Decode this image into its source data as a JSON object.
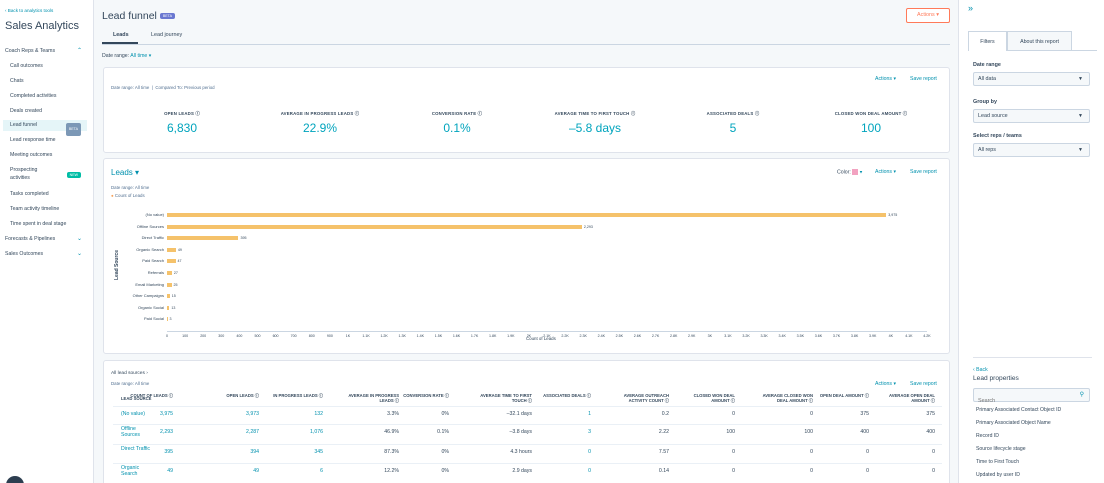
{
  "sidebar": {
    "back": "‹ Back to analytics tools",
    "title": "Sales Analytics",
    "sections": [
      "Coach Reps & Teams",
      "Forecasts & Pipelines",
      "Sales Outcomes"
    ],
    "items": [
      "Call outcomes",
      "Chats",
      "Completed activities",
      "Deals created",
      "Lead funnel",
      "Lead response time",
      "Meeting outcomes",
      "Prospecting activities",
      "Tasks completed",
      "Team activity timeline",
      "Time spent in deal stage"
    ],
    "beta": "BETA",
    "new": "NEW"
  },
  "header": {
    "title": "Lead funnel",
    "beta": "BETA",
    "actions": "Actions ▾",
    "tabs": [
      "Leads",
      "Lead journey"
    ],
    "date_range_label": "Date range:",
    "date_range_value": "All time ▾"
  },
  "summary": {
    "date_range": "Date range: All time",
    "compared": "Compared To: Previous period",
    "actions": "Actions ▾",
    "save": "Save report",
    "kpis": [
      {
        "label": "OPEN LEADS ⓘ",
        "value": "6,830"
      },
      {
        "label": "AVERAGE IN PROGRESS LEADS ⓘ",
        "value": "22.9%"
      },
      {
        "label": "CONVERSION RATE ⓘ",
        "value": "0.1%"
      },
      {
        "label": "AVERAGE TIME TO FIRST TOUCH ⓘ",
        "value": "–5.8 days"
      },
      {
        "label": "ASSOCIATED DEALS ⓘ",
        "value": "5"
      },
      {
        "label": "CLOSED WON DEAL AMOUNT ⓘ",
        "value": "100"
      }
    ]
  },
  "chart_card": {
    "title": "Leads ▾",
    "date_range": "Date range: All time",
    "color_label": "Color:",
    "actions": "Actions ▾",
    "save": "Save report"
  },
  "chart_data": {
    "type": "bar",
    "orientation": "horizontal",
    "legend": [
      "Count of Leads"
    ],
    "ylabel": "Lead Source",
    "xlabel": "Count of Leads",
    "categories": [
      "(No value)",
      "Offline Sources",
      "Direct Traffic",
      "Organic Search",
      "Paid Search",
      "Referrals",
      "Email Marketing",
      "Other Campaigns",
      "Organic Social",
      "Paid Social"
    ],
    "values": [
      3975,
      2293,
      395,
      49,
      47,
      27,
      25,
      15,
      13,
      3
    ],
    "data_labels": [
      "3,975",
      "2,293",
      "395",
      "49",
      "47",
      "27",
      "25",
      "15",
      "13",
      "3"
    ],
    "xlim": [
      0,
      4200
    ],
    "xticks": [
      "0",
      "100",
      "200",
      "300",
      "400",
      "500",
      "600",
      "700",
      "800",
      "900",
      "1K",
      "1.1K",
      "1.2K",
      "1.3K",
      "1.4K",
      "1.5K",
      "1.6K",
      "1.7K",
      "1.8K",
      "1.9K",
      "2K",
      "2.1K",
      "2.2K",
      "2.3K",
      "2.4K",
      "2.5K",
      "2.6K",
      "2.7K",
      "2.8K",
      "2.9K",
      "3K",
      "3.1K",
      "3.2K",
      "3.3K",
      "3.4K",
      "3.5K",
      "3.6K",
      "3.7K",
      "3.8K",
      "3.9K",
      "4K",
      "4.1K",
      "4.2K"
    ],
    "bar_color": "#f5c26b"
  },
  "table": {
    "breadcrumb": "All lead sources ›",
    "date_range": "Date range: All time",
    "actions": "Actions ▾",
    "save": "Save report",
    "headers": [
      "LEAD SOURCE",
      "COUNT OF LEADS ⓘ",
      "OPEN LEADS ⓘ",
      "IN PROGRESS LEADS ⓘ",
      "AVERAGE IN PROGRESS LEADS ⓘ",
      "CONVERSION RATE ⓘ",
      "AVERAGE TIME TO FIRST TOUCH ⓘ",
      "ASSOCIATED DEALS ⓘ",
      "AVERAGE OUTREACH ACTIVITY COUNT ⓘ",
      "CLOSED WON DEAL AMOUNT ⓘ",
      "AVERAGE CLOSED WON DEAL AMOUNT ⓘ",
      "OPEN DEAL AMOUNT ⓘ",
      "AVERAGE OPEN DEAL AMOUNT ⓘ"
    ],
    "rows": [
      [
        "(No value)",
        "3,975",
        "3,973",
        "132",
        "3.3%",
        "0%",
        "–32.1 days",
        "1",
        "0.2",
        "0",
        "0",
        "375",
        "375"
      ],
      [
        "Offline Sources",
        "2,293",
        "2,287",
        "1,076",
        "46.9%",
        "0.1%",
        "–3.8 days",
        "3",
        "2.22",
        "100",
        "100",
        "400",
        "400"
      ],
      [
        "Direct Traffic",
        "395",
        "394",
        "345",
        "87.3%",
        "0%",
        "4.3 hours",
        "0",
        "7.57",
        "0",
        "0",
        "0",
        "0"
      ],
      [
        "Organic Search",
        "49",
        "49",
        "6",
        "12.2%",
        "0%",
        "2.9 days",
        "0",
        "0.14",
        "0",
        "0",
        "0",
        "0"
      ]
    ]
  },
  "right_panel": {
    "tabs": [
      "Filters",
      "About this report"
    ],
    "date_range_label": "Date range",
    "date_range_value": "All data",
    "group_by_label": "Group by",
    "group_by_value": "Lead source",
    "reps_label": "Select reps / teams",
    "reps_value": "All reps",
    "back": "‹ Back",
    "props_title": "Lead properties",
    "search_placeholder": "Search",
    "properties": [
      "Primary Associated Contact Object ID",
      "Primary Associated Object Name",
      "Record ID",
      "Source lifecycle stage",
      "Time to First Touch",
      "Updated by user ID"
    ]
  }
}
